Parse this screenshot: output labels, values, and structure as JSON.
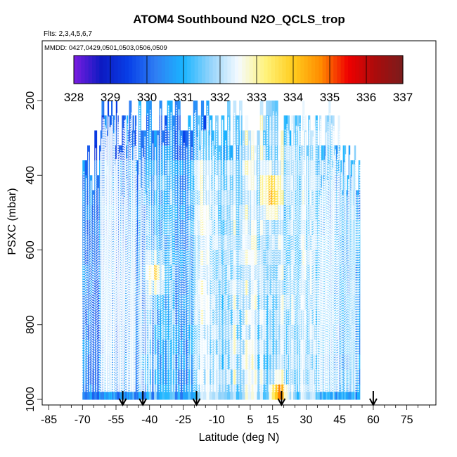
{
  "chart_data": {
    "type": "heatmap",
    "title": "ATOM4 Southbound N2O_QCLS_trop",
    "flights_label": "Flts: 2,3,4,5,6,7",
    "dates_label": "MMDD: 0427,0429,0501,0503,0506,0509",
    "xlabel": "Latitude (deg N)",
    "ylabel": "PSXC (mbar)",
    "xlim": [
      -88,
      88
    ],
    "ylim": [
      1015,
      40
    ],
    "x_ticks": [
      -85,
      -70,
      -55,
      -40,
      -25,
      -10,
      5,
      15,
      30,
      45,
      60,
      75
    ],
    "x_tick_labels": [
      "-85",
      "-70",
      "-55",
      "-40",
      "-25",
      "-10",
      "5",
      "15",
      "30",
      "45",
      "60",
      "75"
    ],
    "y_ticks": [
      200,
      400,
      600,
      800,
      1000
    ],
    "y_tick_labels": [
      "200",
      "400",
      "600",
      "800",
      "1000"
    ],
    "colorbar": {
      "min": 328,
      "max": 337,
      "tick_labels": [
        "328",
        "329",
        "330",
        "331",
        "332",
        "333",
        "334",
        "335",
        "336",
        "337"
      ],
      "colors": [
        "#7b1ce0",
        "#0d1ac2",
        "#0840e8",
        "#2f7ff4",
        "#1ab5ff",
        "#95d4fb",
        "#f5fbff",
        "#fff27a",
        "#ffcd1e",
        "#ff8c00",
        "#f00000",
        "#aa0c0c",
        "#7a1c1c"
      ]
    },
    "profile_curtain": {
      "profiles_per_flight": 30,
      "bottom_pressure_mbar": 1000,
      "flights": [
        {
          "lat_start": -70,
          "lat_end": -38,
          "top_pressure_mbar": 320,
          "mean_n2o_ppb": 330.2
        },
        {
          "lat_start": -62,
          "lat_end": -46,
          "top_pressure_mbar": 230,
          "mean_n2o_ppb": 330.6
        },
        {
          "lat_start": -45,
          "lat_end": -10,
          "top_pressure_mbar": 200,
          "mean_n2o_ppb": 331.0
        },
        {
          "lat_start": -20,
          "lat_end": 20,
          "top_pressure_mbar": 215,
          "mean_n2o_ppb": 332.0
        },
        {
          "lat_start": 20,
          "lat_end": 45,
          "top_pressure_mbar": 230,
          "mean_n2o_ppb": 331.8
        },
        {
          "lat_start": 35,
          "lat_end": 54,
          "top_pressure_mbar": 320,
          "mean_n2o_ppb": 331.0
        }
      ],
      "enhancements": [
        {
          "lat": 14,
          "pressure_mbar": 430,
          "n2o_ppb": 334.6
        },
        {
          "lat": 17,
          "pressure_mbar": 990,
          "n2o_ppb": 335.8
        },
        {
          "lat": -38,
          "pressure_mbar": 650,
          "n2o_ppb": 333.4
        }
      ]
    },
    "flight_boundary_arrows_lat": [
      -52,
      -43,
      -19,
      19,
      60
    ]
  }
}
